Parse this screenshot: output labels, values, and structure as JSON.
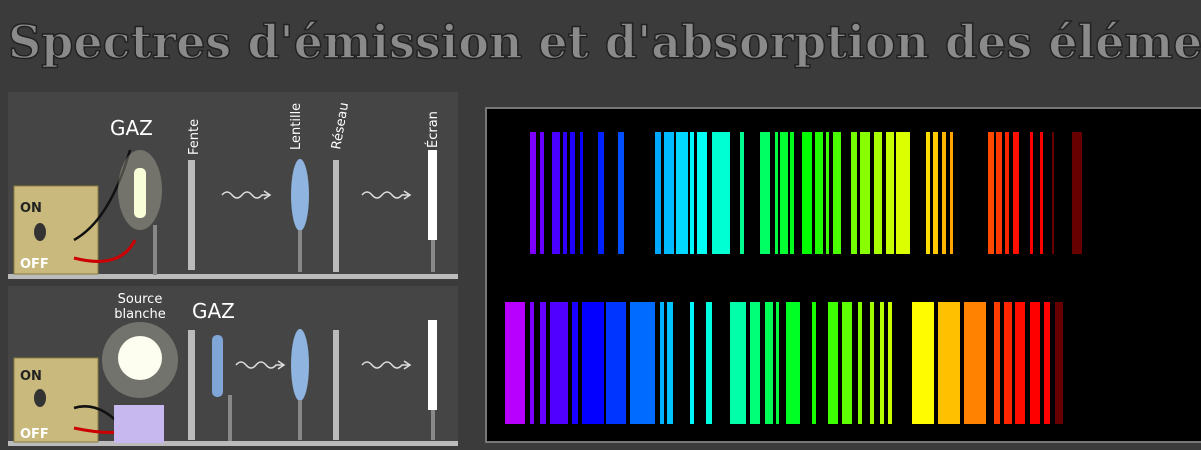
{
  "title": "Spectres d'émission et d'absorption des éléments",
  "emission": {
    "gas_label": "GAZ",
    "switch_on": "ON",
    "switch_off": "OFF",
    "instrument_labels": [
      "Fente",
      "Lentille",
      "Réseau",
      "Écran"
    ]
  },
  "absorption": {
    "source_label": [
      "Source",
      "blanche"
    ],
    "gas_label": "GAZ",
    "switch_on": "ON",
    "switch_off": "OFF"
  }
}
